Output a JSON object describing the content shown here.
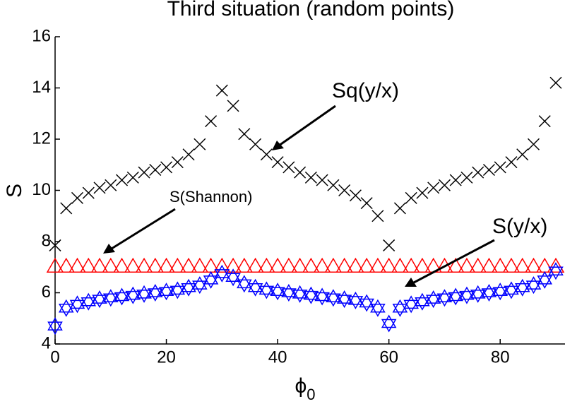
{
  "chart_data": {
    "type": "scatter",
    "title": "Third situation (random points)",
    "ylabel": "S",
    "xlabel": [
      "ϕ",
      "0"
    ],
    "x": [
      0,
      2,
      4,
      6,
      8,
      10,
      12,
      14,
      16,
      18,
      20,
      22,
      24,
      26,
      28,
      30,
      32,
      34,
      36,
      38,
      40,
      42,
      44,
      46,
      48,
      50,
      52,
      54,
      56,
      58,
      60,
      62,
      64,
      66,
      68,
      70,
      72,
      74,
      76,
      78,
      80,
      82,
      84,
      86,
      88,
      90
    ],
    "xlim": [
      0,
      90
    ],
    "xticks": [
      0,
      20,
      40,
      60,
      80
    ],
    "ylim": [
      4,
      16
    ],
    "yticks": [
      4,
      6,
      8,
      10,
      12,
      14,
      16
    ],
    "series": [
      {
        "name": "Sq(y/x)",
        "color": "#000000",
        "marker": "x",
        "values": [
          7.85,
          9.3,
          9.7,
          9.9,
          10.1,
          10.2,
          10.4,
          10.5,
          10.7,
          10.8,
          10.9,
          11.1,
          11.4,
          11.8,
          12.7,
          13.9,
          13.3,
          12.2,
          11.8,
          11.4,
          11.1,
          10.9,
          10.7,
          10.5,
          10.4,
          10.2,
          10.0,
          9.8,
          9.5,
          9.0,
          7.85,
          9.3,
          9.7,
          9.9,
          10.1,
          10.2,
          10.4,
          10.5,
          10.7,
          10.8,
          10.9,
          11.1,
          11.4,
          11.8,
          12.7,
          14.2
        ]
      },
      {
        "name": "S(Shannon)",
        "color": "#ff0000",
        "marker": "triangle",
        "values": [
          7.0,
          7.0,
          7.0,
          7.0,
          7.0,
          7.0,
          7.0,
          7.0,
          7.0,
          7.0,
          7.0,
          7.0,
          7.0,
          7.0,
          7.0,
          7.0,
          7.0,
          7.0,
          7.0,
          7.0,
          7.0,
          7.0,
          7.0,
          7.0,
          7.0,
          7.0,
          7.0,
          7.0,
          7.0,
          7.0,
          7.0,
          7.0,
          7.0,
          7.0,
          7.0,
          7.0,
          7.0,
          7.0,
          7.0,
          7.0,
          7.0,
          7.0,
          7.0,
          7.0,
          7.0,
          7.0
        ]
      },
      {
        "name": "S(y/x)",
        "color": "#0000ff",
        "marker": "hexagram",
        "values": [
          4.7,
          5.4,
          5.55,
          5.65,
          5.75,
          5.8,
          5.85,
          5.9,
          5.95,
          6.0,
          6.05,
          6.1,
          6.2,
          6.3,
          6.5,
          6.75,
          6.6,
          6.35,
          6.2,
          6.1,
          6.05,
          6.0,
          5.95,
          5.9,
          5.85,
          5.8,
          5.75,
          5.7,
          5.6,
          5.4,
          4.8,
          5.4,
          5.55,
          5.65,
          5.75,
          5.8,
          5.85,
          5.9,
          5.95,
          6.0,
          6.05,
          6.1,
          6.2,
          6.3,
          6.5,
          6.85
        ]
      }
    ]
  }
}
